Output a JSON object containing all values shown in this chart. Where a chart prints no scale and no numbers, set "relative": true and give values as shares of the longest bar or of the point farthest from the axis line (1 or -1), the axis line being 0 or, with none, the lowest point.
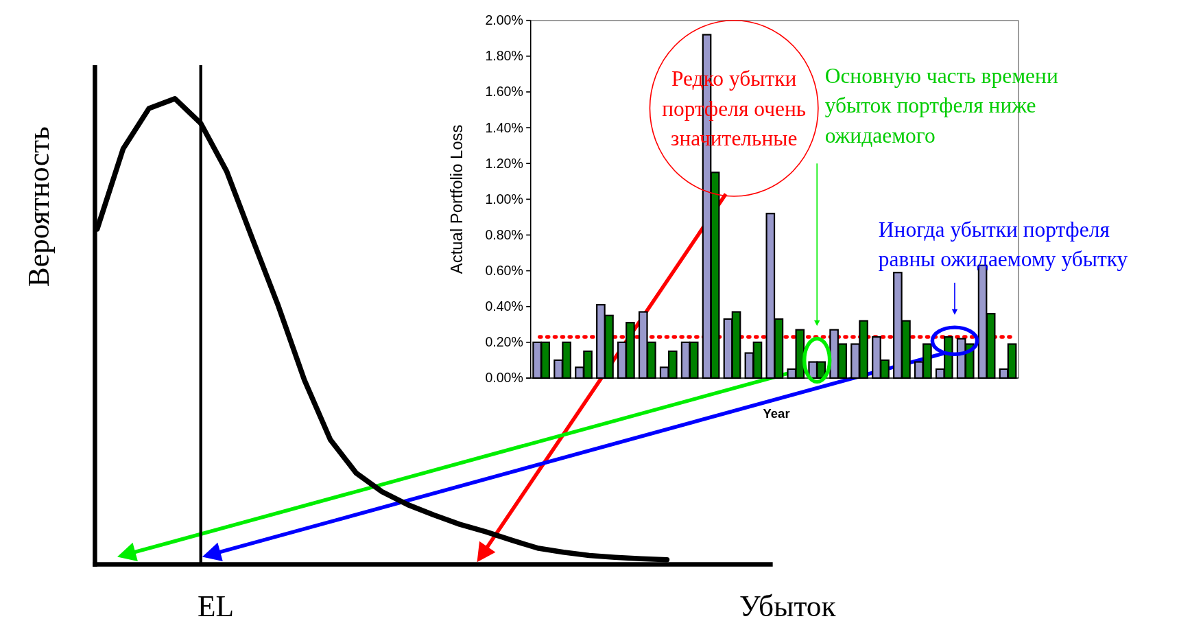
{
  "chart_data": [
    {
      "type": "line",
      "xlabel": "Убыток",
      "ylabel": "Вероятность",
      "relative": true,
      "color": "#000000",
      "categories": [
        null,
        null,
        null,
        null,
        null,
        null,
        null,
        null,
        null,
        null,
        null,
        null,
        null,
        null,
        null,
        null,
        null,
        null,
        null,
        null,
        null,
        null,
        null
      ],
      "annotations": [
        "EL"
      ],
      "values": [
        0.72,
        0.892,
        0.979,
        1,
        0.947,
        0.844,
        0.698,
        0.554,
        0.396,
        0.268,
        0.196,
        0.156,
        0.128,
        0.106,
        0.086,
        0.07,
        0.052,
        0.035,
        0.026,
        0.019,
        0.015,
        0.012,
        0.01
      ],
      "ref_lines": [
        {
          "axis": "x",
          "color": "#000000"
        }
      ]
    },
    {
      "type": "bar",
      "xlabel": "Year",
      "ylabel": "Actual Portfolio Loss",
      "categories": [
        null,
        null,
        null,
        null,
        null,
        null,
        null,
        null,
        null,
        null,
        null,
        null,
        null,
        null,
        null,
        null,
        null,
        null,
        null,
        null,
        null,
        null,
        null
      ],
      "series": [
        {
          "color": "#9999cc",
          "values": [
            0.2,
            0.1,
            0.06,
            0.41,
            0.2,
            0.37,
            0.06,
            0.2,
            1.92,
            0.33,
            0.14,
            0.92,
            0.05,
            0.09,
            0.27,
            0.19,
            0.23,
            0.59,
            0.09,
            0.05,
            0.22,
            0.63,
            0.05
          ]
        },
        {
          "color": "#008000",
          "values": [
            0.2,
            0.2,
            0.15,
            0.35,
            0.31,
            0.2,
            0.15,
            0.2,
            1.15,
            0.37,
            0.2,
            0.33,
            0.27,
            0.09,
            0.19,
            0.32,
            0.1,
            0.32,
            0.19,
            0.23,
            0.19,
            0.36,
            0.19
          ]
        }
      ],
      "ylim": [
        0,
        2
      ],
      "yticks": [
        {
          "value": 0,
          "label": "0.00%"
        },
        {
          "value": 0.2,
          "label": "0.20%"
        },
        {
          "value": 0.4,
          "label": "0.40%"
        },
        {
          "value": 0.6,
          "label": "0.60%"
        },
        {
          "value": 0.8,
          "label": "0.80%"
        },
        {
          "value": 1,
          "label": "1.00%"
        },
        {
          "value": 1.2,
          "label": "1.20%"
        },
        {
          "value": 1.4,
          "label": "1.40%"
        },
        {
          "value": 1.6,
          "label": "1.60%"
        },
        {
          "value": 1.8,
          "label": "1.80%"
        },
        {
          "value": 2,
          "label": "2.00%"
        }
      ],
      "ref_lines": [
        {
          "axis": "y",
          "value": 0.23,
          "color": "#ff0000",
          "line_style": "dotted"
        }
      ],
      "annotations": [
        "Редко убытки портфеля очень значительные",
        "Основную часть времени убыток портфеля ниже ожидаемого",
        "Иногда убытки портфеля равны ожидаемому убытку"
      ]
    }
  ]
}
